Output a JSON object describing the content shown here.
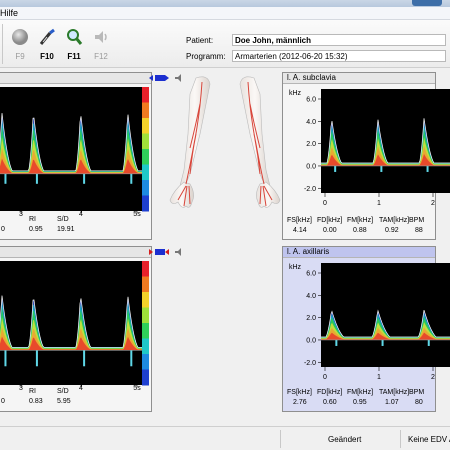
{
  "menu": {
    "help_label": "Hilfe"
  },
  "toolbar": {
    "buttons": [
      {
        "label": "F9",
        "icon": "record-icon",
        "enabled": false
      },
      {
        "label": "F10",
        "icon": "probe-icon",
        "enabled": true
      },
      {
        "label": "F11",
        "icon": "magnifier-icon",
        "enabled": true
      },
      {
        "label": "F12",
        "icon": "speaker-icon",
        "enabled": false
      }
    ]
  },
  "patient": {
    "patient_label": "Patient:",
    "patient_value": "Doe John, männlich",
    "program_label": "Programm:",
    "program_value": "Armarterien (2012-06-20 15:32)"
  },
  "panels": {
    "top_left": {
      "title": "",
      "x_ticks": [
        "3",
        "4",
        "5s"
      ],
      "param_headers": [
        "RI",
        "S/D"
      ],
      "param_values": [
        "0.95",
        "19.91"
      ],
      "extra_value": "0"
    },
    "bottom_left": {
      "title": "",
      "x_ticks": [
        "3",
        "4",
        "5s"
      ],
      "param_headers": [
        "RI",
        "S/D"
      ],
      "param_values": [
        "0.83",
        "5.95"
      ],
      "extra_value": "0"
    },
    "top_right": {
      "title": "l. A. subclavia",
      "y_unit": "kHz",
      "y_ticks": [
        "6.0",
        "4.0",
        "2.0",
        "0.0",
        "-2.0"
      ],
      "x_ticks": [
        "0",
        "1",
        "2"
      ],
      "param_headers": [
        "FS[kHz]",
        "FD[kHz]",
        "FM[kHz]",
        "TAM[kHz]",
        "BPM"
      ],
      "param_values": [
        "4.14",
        "0.00",
        "0.88",
        "0.92",
        "88"
      ]
    },
    "bottom_right": {
      "title": "l. A. axillaris",
      "y_unit": "kHz",
      "y_ticks": [
        "6.0",
        "4.0",
        "2.0",
        "0.0",
        "-2.0"
      ],
      "x_ticks": [
        "0",
        "1",
        "2"
      ],
      "param_headers": [
        "FS[kHz]",
        "FD[kHz]",
        "FM[kHz]",
        "TAM[kHz]",
        "BPM"
      ],
      "param_values": [
        "2.76",
        "0.60",
        "0.95",
        "1.07",
        "80"
      ]
    }
  },
  "status": {
    "changed": "Geändert",
    "edv": "Keine EDV A"
  },
  "colors": {
    "accent": "#3d6ea8",
    "active_panel": "#bfc4ee",
    "artery": "#d8453a"
  }
}
